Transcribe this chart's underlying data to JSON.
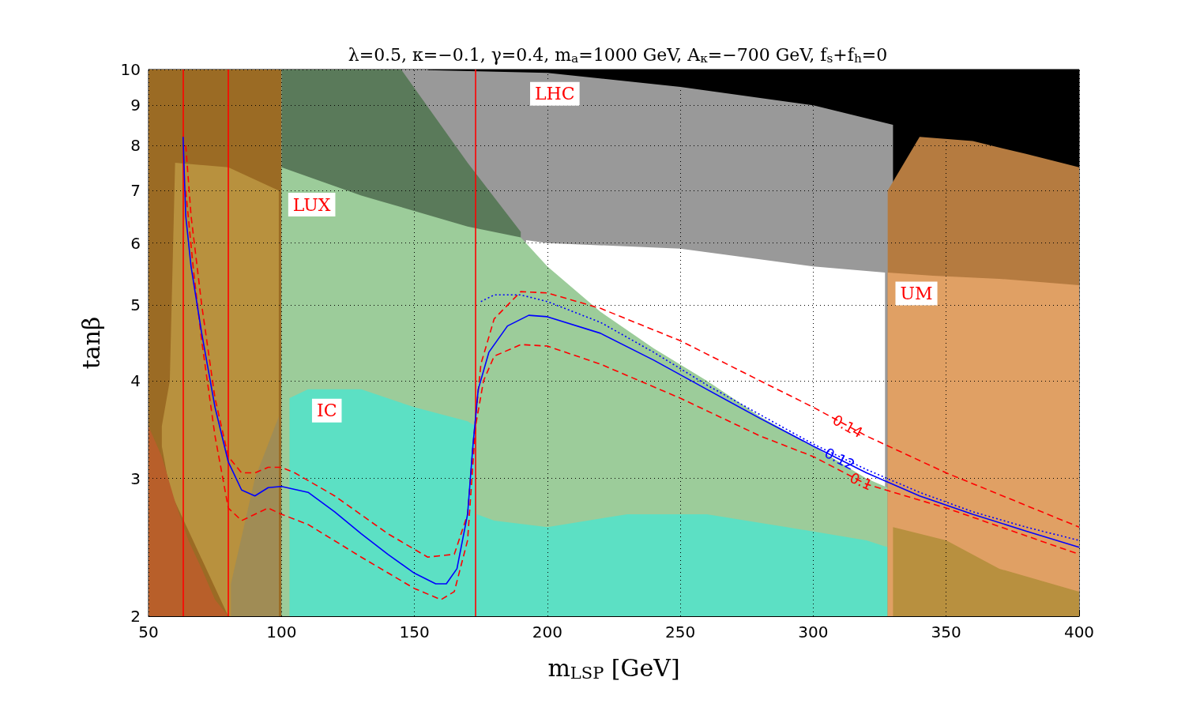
{
  "chart_data": {
    "type": "line",
    "title": "λ=0.5, κ=−0.1, γ=0.4, m$_{a}$=1000 GeV, A$_{κ}$=−700 GeV, f$_{s}$+f$_{h}$=0",
    "xlabel": "m$_{LSP}$ [GeV]",
    "ylabel": "tanβ",
    "xlim": [
      50,
      400
    ],
    "xticks": [
      50,
      100,
      150,
      200,
      250,
      300,
      350,
      400
    ],
    "ylim": [
      2,
      10
    ],
    "yticks": [
      2,
      3,
      4,
      5,
      6,
      7,
      8,
      9,
      10
    ],
    "log": "y",
    "grid": true,
    "marker": "none",
    "series": [
      {
        "type": "area",
        "color": "#9b6b24",
        "x": [
          50,
          100
        ],
        "values": [
          10,
          10
        ]
      },
      {
        "type": "area",
        "color": "#b8913e",
        "x": [
          55,
          58,
          60,
          80,
          99
        ],
        "values": [
          3.5,
          4.0,
          7.6,
          7.5,
          7.0
        ]
      },
      {
        "type": "area",
        "color": "#9b6b24",
        "x": [
          55,
          58,
          60,
          80
        ],
        "values": [
          3.3,
          2.9,
          2.8,
          2.0
        ]
      },
      {
        "type": "area",
        "color": "#a08c55",
        "x": [
          81,
          90,
          99
        ],
        "values": [
          2.2,
          3.0,
          3.6
        ]
      },
      {
        "type": "area",
        "color": "#b85f2a",
        "x": [
          50,
          55,
          60,
          65,
          70,
          75,
          80
        ],
        "values": [
          3.5,
          3.2,
          2.8,
          2.5,
          2.3,
          2.1,
          2.0
        ]
      },
      {
        "type": "area",
        "color": "#000000",
        "x": [
          155,
          400
        ],
        "values": [
          10,
          10
        ]
      },
      {
        "name": "LHC",
        "type": "area",
        "color": "#999999",
        "x": [
          145,
          200,
          250,
          300,
          330
        ],
        "values": [
          10,
          9.9,
          9.5,
          9.0,
          8.5
        ]
      },
      {
        "type": "area",
        "color": "#ffffff",
        "x": [
          192,
          200,
          250,
          300,
          327
        ],
        "values": [
          6.05,
          6.0,
          5.9,
          5.6,
          5.5
        ]
      },
      {
        "type": "area",
        "color": "#5a7a5a",
        "x": [
          100,
          145,
          170,
          190
        ],
        "values": [
          10,
          10,
          7.6,
          6.2
        ]
      },
      {
        "name": "LUX",
        "type": "area",
        "color": "#9ccc9a",
        "x": [
          100,
          130,
          170,
          190,
          200,
          220,
          240,
          260,
          280,
          300,
          320,
          328
        ],
        "values": [
          7.5,
          6.9,
          6.3,
          6.1,
          5.6,
          4.9,
          4.4,
          4.0,
          3.6,
          3.3,
          3.0,
          2.92
        ]
      },
      {
        "name": "IC",
        "type": "area",
        "color": "#5ce0c4",
        "x": [
          103,
          110,
          130,
          150,
          170,
          173,
          173.5,
          180,
          200,
          230,
          260,
          290,
          320,
          328
        ],
        "values": [
          3.8,
          3.9,
          3.9,
          3.7,
          3.55,
          3.5,
          2.7,
          2.65,
          2.6,
          2.7,
          2.7,
          2.6,
          2.5,
          2.45
        ]
      },
      {
        "type": "area",
        "color": "#b57b40",
        "x": [
          328,
          340,
          360,
          380,
          400
        ],
        "values": [
          7.0,
          8.2,
          8.1,
          7.8,
          7.5
        ]
      },
      {
        "name": "UM",
        "type": "area",
        "color": "#e0a064",
        "x": [
          328,
          345,
          370,
          400
        ],
        "values": [
          5.5,
          5.45,
          5.4,
          5.3
        ]
      },
      {
        "type": "area",
        "color": "#b8903f",
        "x": [
          330,
          350,
          370,
          400
        ],
        "values": [
          2.6,
          2.5,
          2.3,
          2.15
        ]
      },
      {
        "color": "#ff0000",
        "line_style": "dashed",
        "x": [
          64,
          66,
          70,
          75,
          80,
          85,
          90,
          95,
          100,
          105,
          120,
          140,
          155,
          165,
          170,
          172,
          175,
          180,
          190,
          200,
          220,
          250,
          280,
          300,
          320,
          350,
          400
        ],
        "values": [
          8.0,
          6.5,
          5.0,
          3.8,
          3.2,
          3.05,
          3.05,
          3.1,
          3.1,
          3.05,
          2.85,
          2.55,
          2.38,
          2.4,
          2.7,
          3.3,
          4.2,
          4.8,
          5.2,
          5.18,
          4.95,
          4.5,
          4.0,
          3.7,
          3.4,
          3.05,
          2.6
        ]
      },
      {
        "color": "#ff0000",
        "line_style": "dashed",
        "x": [
          64,
          67,
          70,
          75,
          80,
          85,
          90,
          95,
          100,
          110,
          130,
          150,
          160,
          165,
          170,
          173,
          176,
          180,
          190,
          200,
          220,
          250,
          280,
          300,
          320,
          350,
          400
        ],
        "values": [
          7.0,
          5.5,
          4.5,
          3.4,
          2.75,
          2.65,
          2.7,
          2.75,
          2.7,
          2.62,
          2.38,
          2.17,
          2.1,
          2.15,
          2.5,
          3.5,
          4.0,
          4.3,
          4.45,
          4.43,
          4.2,
          3.8,
          3.4,
          3.2,
          2.95,
          2.75,
          2.4
        ]
      },
      {
        "color": "#0000ff",
        "line_style": "dotted",
        "x": [
          175,
          180,
          190,
          200,
          220,
          240,
          260,
          280,
          300,
          320,
          340,
          360,
          380,
          400
        ],
        "values": [
          5.05,
          5.15,
          5.15,
          5.05,
          4.75,
          4.35,
          3.95,
          3.62,
          3.32,
          3.08,
          2.88,
          2.72,
          2.6,
          2.5
        ]
      },
      {
        "color": "#0000ff",
        "line_style": "solid",
        "x": [
          63,
          64,
          66,
          70,
          75,
          80,
          85,
          90,
          95,
          100,
          110,
          120,
          130,
          140,
          150,
          158,
          162,
          166,
          170,
          172,
          174,
          178,
          185,
          193,
          200,
          220,
          240,
          260,
          280,
          300,
          320,
          340,
          360,
          380,
          400
        ],
        "values": [
          8.2,
          6.5,
          5.6,
          4.6,
          3.7,
          3.15,
          2.9,
          2.85,
          2.92,
          2.93,
          2.88,
          2.72,
          2.55,
          2.4,
          2.27,
          2.2,
          2.2,
          2.3,
          2.7,
          3.3,
          3.9,
          4.35,
          4.7,
          4.85,
          4.83,
          4.6,
          4.25,
          3.9,
          3.58,
          3.3,
          3.05,
          2.85,
          2.7,
          2.57,
          2.45
        ]
      }
    ],
    "ref_lines": [
      {
        "axis": "x",
        "value": 63,
        "color": "#ff0000"
      },
      {
        "axis": "x",
        "value": 80,
        "color": "#ff0000"
      },
      {
        "axis": "x",
        "value": 173,
        "color": "#ff0000"
      }
    ],
    "annotations": [
      {
        "text": "0.14",
        "x": 313,
        "y": 3.5
      },
      {
        "text": "0.12",
        "x": 310,
        "y": 3.18
      },
      {
        "text": "0.1",
        "x": 318,
        "y": 2.975
      }
    ]
  }
}
